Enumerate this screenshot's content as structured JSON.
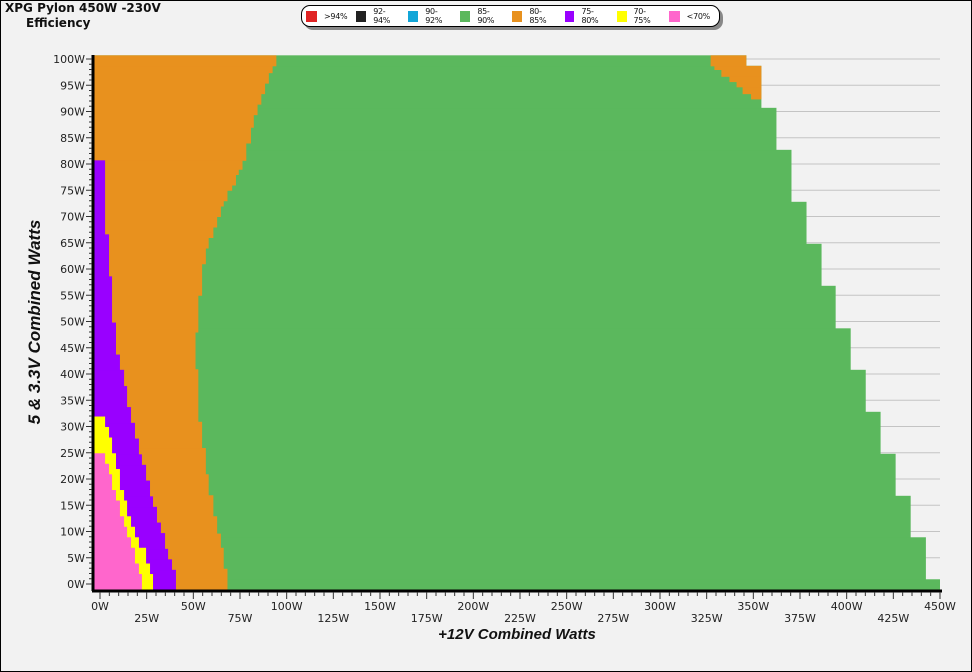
{
  "header": {
    "title": "XPG Pylon 450W -230V",
    "subtitle": "Efficiency"
  },
  "legend": [
    {
      "label": ">94%",
      "color": "#e02424"
    },
    {
      "label": "92-94%",
      "color": "#222222"
    },
    {
      "label": "90-92%",
      "color": "#12a6d8"
    },
    {
      "label": "85-90%",
      "color": "#5bb85d"
    },
    {
      "label": "80-85%",
      "color": "#e8911e"
    },
    {
      "label": "75-80%",
      "color": "#9900ff"
    },
    {
      "label": "70-75%",
      "color": "#ffff00"
    },
    {
      "label": "<70%",
      "color": "#ff66cc"
    }
  ],
  "chart_data": {
    "type": "heatmap",
    "title": "XPG Pylon 450W -230V Efficiency",
    "xlabel": "+12V Combined Watts",
    "ylabel": "5 & 3.3V Combined Watts",
    "xlim": [
      0,
      450
    ],
    "ylim": [
      0,
      100
    ],
    "x_ticks": [
      "0W",
      "25W",
      "50W",
      "75W",
      "100W",
      "125W",
      "150W",
      "175W",
      "200W",
      "225W",
      "250W",
      "275W",
      "300W",
      "325W",
      "350W",
      "375W",
      "400W",
      "425W",
      "450W"
    ],
    "y_ticks": [
      "0W",
      "5W",
      "10W",
      "15W",
      "20W",
      "25W",
      "30W",
      "35W",
      "40W",
      "45W",
      "50W",
      "55W",
      "60W",
      "65W",
      "70W",
      "75W",
      "80W",
      "85W",
      "90W",
      "95W",
      "100W"
    ],
    "grid": "horizontal",
    "regions_note_format": "each region: steps of [y_from_W, y_to_W, x_end_W], region spans from 0 to x_end (drawn in order, later overdraws earlier)",
    "regions": [
      {
        "category": "85-90%",
        "steps": [
          [
            -1.1,
            0.9,
            450
          ],
          [
            0.9,
            8.9,
            442.5
          ],
          [
            8.9,
            16.8,
            434.4
          ],
          [
            16.8,
            24.8,
            426.4
          ],
          [
            24.8,
            32.8,
            418.4
          ],
          [
            32.8,
            40.8,
            410.5
          ],
          [
            40.8,
            48.7,
            402.5
          ],
          [
            48.7,
            56.8,
            394.5
          ],
          [
            56.8,
            64.8,
            387
          ],
          [
            64.8,
            72.8,
            379
          ],
          [
            72.8,
            82.7,
            371
          ],
          [
            82.7,
            90.7,
            363
          ],
          [
            90.7,
            98.7,
            355
          ],
          [
            98.7,
            100.7,
            347
          ]
        ]
      },
      {
        "category": "80-85%",
        "steps": [
          [
            -1.1,
            2.9,
            71
          ],
          [
            2.9,
            6.9,
            69
          ],
          [
            6.9,
            9.6,
            67.5
          ],
          [
            9.6,
            12.9,
            65.5
          ],
          [
            12.9,
            16.9,
            63.5
          ],
          [
            16.9,
            20.9,
            61
          ],
          [
            20.9,
            25.9,
            59.5
          ],
          [
            25.9,
            30.9,
            57.5
          ],
          [
            30.9,
            40.9,
            55.5
          ],
          [
            40.9,
            48,
            54
          ],
          [
            48,
            55,
            55.5
          ],
          [
            55,
            61,
            57.5
          ],
          [
            61,
            64,
            59.5
          ],
          [
            64,
            66,
            61
          ],
          [
            66,
            68,
            63.5
          ],
          [
            68,
            70,
            65.5
          ],
          [
            70,
            72,
            67.5
          ],
          [
            72,
            73,
            69
          ],
          [
            73,
            75,
            71
          ],
          [
            75,
            76,
            73.5
          ],
          [
            76,
            78,
            75.5
          ],
          [
            78,
            79,
            77
          ],
          [
            79,
            80.7,
            79
          ],
          [
            80.7,
            84,
            81
          ],
          [
            84,
            87,
            83.5
          ],
          [
            87,
            89.4,
            85
          ],
          [
            89.4,
            91.4,
            87
          ],
          [
            91.4,
            93.4,
            89
          ],
          [
            93.4,
            95.4,
            91
          ],
          [
            95.4,
            97.4,
            93
          ],
          [
            97.4,
            98.7,
            95
          ],
          [
            98.7,
            100.7,
            97
          ]
        ]
      },
      {
        "category": "75-80%",
        "steps": [
          [
            -1.1,
            2.7,
            43.6
          ],
          [
            2.7,
            4.7,
            41.5
          ],
          [
            4.7,
            6.7,
            39.4
          ],
          [
            6.7,
            9.7,
            37.8
          ],
          [
            9.7,
            11.7,
            35.6
          ],
          [
            11.7,
            14.7,
            33.5
          ],
          [
            14.7,
            16.7,
            31.4
          ],
          [
            16.7,
            19.7,
            29.8
          ],
          [
            19.7,
            22.7,
            27.7
          ],
          [
            22.7,
            24.7,
            25.5
          ],
          [
            24.7,
            27.7,
            23.9
          ],
          [
            27.7,
            30.7,
            21.8
          ],
          [
            30.7,
            33.7,
            19.7
          ],
          [
            33.7,
            37.7,
            17.6
          ],
          [
            37.7,
            40.8,
            16
          ],
          [
            40.8,
            43.7,
            13.8
          ],
          [
            43.7,
            49.8,
            11.7
          ],
          [
            49.8,
            58.6,
            9.6
          ],
          [
            58.6,
            66.6,
            8
          ],
          [
            66.6,
            80.7,
            5.9
          ]
        ]
      },
      {
        "category": "70-75%",
        "steps": [
          [
            -1.1,
            1.9,
            31.4
          ],
          [
            1.9,
            3.9,
            29.8
          ],
          [
            3.9,
            6.9,
            27.7
          ],
          [
            6.9,
            8.9,
            23.9
          ],
          [
            8.9,
            10.9,
            21.8
          ],
          [
            10.9,
            12.9,
            19.7
          ],
          [
            12.9,
            15.9,
            17.6
          ],
          [
            15.9,
            17.9,
            16
          ],
          [
            17.9,
            21.9,
            13.8
          ],
          [
            21.9,
            24.9,
            11.7
          ],
          [
            24.9,
            27.9,
            9.6
          ],
          [
            27.9,
            29.9,
            8
          ],
          [
            29.9,
            31.9,
            5.9
          ]
        ]
      },
      {
        "category": "<70%",
        "steps": [
          [
            -1.1,
            1.9,
            25.5
          ],
          [
            1.9,
            3.9,
            23.9
          ],
          [
            3.9,
            6.9,
            21.8
          ],
          [
            6.9,
            8.9,
            19.7
          ],
          [
            8.9,
            10.9,
            17.6
          ],
          [
            10.9,
            12.9,
            16
          ],
          [
            12.9,
            15.9,
            13.8
          ],
          [
            15.9,
            17.9,
            11.7
          ],
          [
            17.9,
            20.9,
            9.6
          ],
          [
            20.9,
            22.9,
            8
          ],
          [
            22.9,
            24.9,
            5.9
          ]
        ]
      }
    ],
    "overlays": [
      {
        "category": "80-85%",
        "format": "[y_from, y_to, x_from, x_to]",
        "steps": [
          [
            92.4,
            93.4,
            349.5,
            355
          ],
          [
            93.4,
            94.7,
            345,
            355
          ],
          [
            94.7,
            95.7,
            341.8,
            355
          ],
          [
            95.7,
            96.7,
            338,
            355
          ],
          [
            96.7,
            98,
            333.7,
            355
          ],
          [
            98,
            98.7,
            330,
            355
          ],
          [
            98.7,
            100.7,
            328,
            347
          ]
        ]
      }
    ]
  }
}
